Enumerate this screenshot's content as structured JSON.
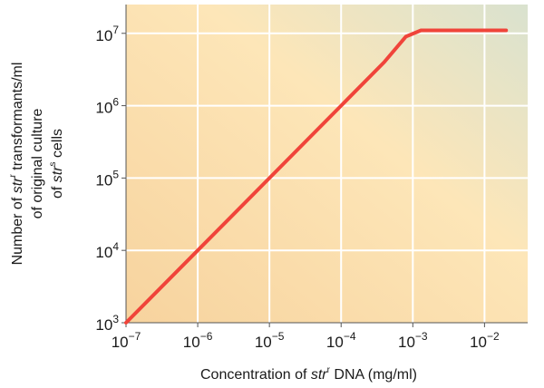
{
  "chart_data": {
    "type": "line",
    "xlabel": {
      "parts": [
        {
          "text": "Concentration of ",
          "style": "normal"
        },
        {
          "text": "str",
          "style": "italic"
        },
        {
          "text": "r",
          "style": "sup"
        },
        {
          "text": " DNA (mg/ml)",
          "style": "normal"
        }
      ]
    },
    "ylabel": {
      "lines": [
        [
          {
            "text": "Number of ",
            "style": "normal"
          },
          {
            "text": "str",
            "style": "italic"
          },
          {
            "text": "r",
            "style": "sup"
          },
          {
            "text": " transformants/ml",
            "style": "normal"
          }
        ],
        [
          {
            "text": "of original culture",
            "style": "normal"
          }
        ],
        [
          {
            "text": "of ",
            "style": "normal"
          },
          {
            "text": "str",
            "style": "italic"
          },
          {
            "text": "s",
            "style": "sup"
          },
          {
            "text": " cells",
            "style": "normal"
          }
        ]
      ]
    },
    "x_scale": "log",
    "y_scale": "log",
    "xlim": [
      1e-07,
      0.04
    ],
    "ylim": [
      1000,
      25000000
    ],
    "x_ticks": [
      {
        "value": 1e-07,
        "base": "10",
        "exp": "−7"
      },
      {
        "value": 1e-06,
        "base": "10",
        "exp": "−6"
      },
      {
        "value": 1e-05,
        "base": "10",
        "exp": "−5"
      },
      {
        "value": 0.0001,
        "base": "10",
        "exp": "−4"
      },
      {
        "value": 0.001,
        "base": "10",
        "exp": "−3"
      },
      {
        "value": 0.01,
        "base": "10",
        "exp": "−2"
      }
    ],
    "y_ticks": [
      {
        "value": 1000,
        "base": "10",
        "exp": "3"
      },
      {
        "value": 10000,
        "base": "10",
        "exp": "4"
      },
      {
        "value": 100000,
        "base": "10",
        "exp": "5"
      },
      {
        "value": 1000000,
        "base": "10",
        "exp": "6"
      },
      {
        "value": 10000000,
        "base": "10",
        "exp": "7"
      }
    ],
    "grid": true,
    "series": [
      {
        "color": "#f0443a",
        "points": [
          {
            "x": 1e-07,
            "y": 1000
          },
          {
            "x": 1e-06,
            "y": 10000
          },
          {
            "x": 1e-05,
            "y": 100000
          },
          {
            "x": 0.0001,
            "y": 1000000
          },
          {
            "x": 0.0004,
            "y": 4000000
          },
          {
            "x": 0.0008,
            "y": 9000000
          },
          {
            "x": 0.0013,
            "y": 11000000
          },
          {
            "x": 0.02,
            "y": 11000000
          }
        ]
      }
    ],
    "colors": {
      "plot_bg_light": "#fde6b8",
      "plot_bg_warm": "#f7d39e",
      "plot_bg_cool": "#d9e2cf",
      "grid": "#ffffff",
      "axis": "#555555"
    }
  }
}
